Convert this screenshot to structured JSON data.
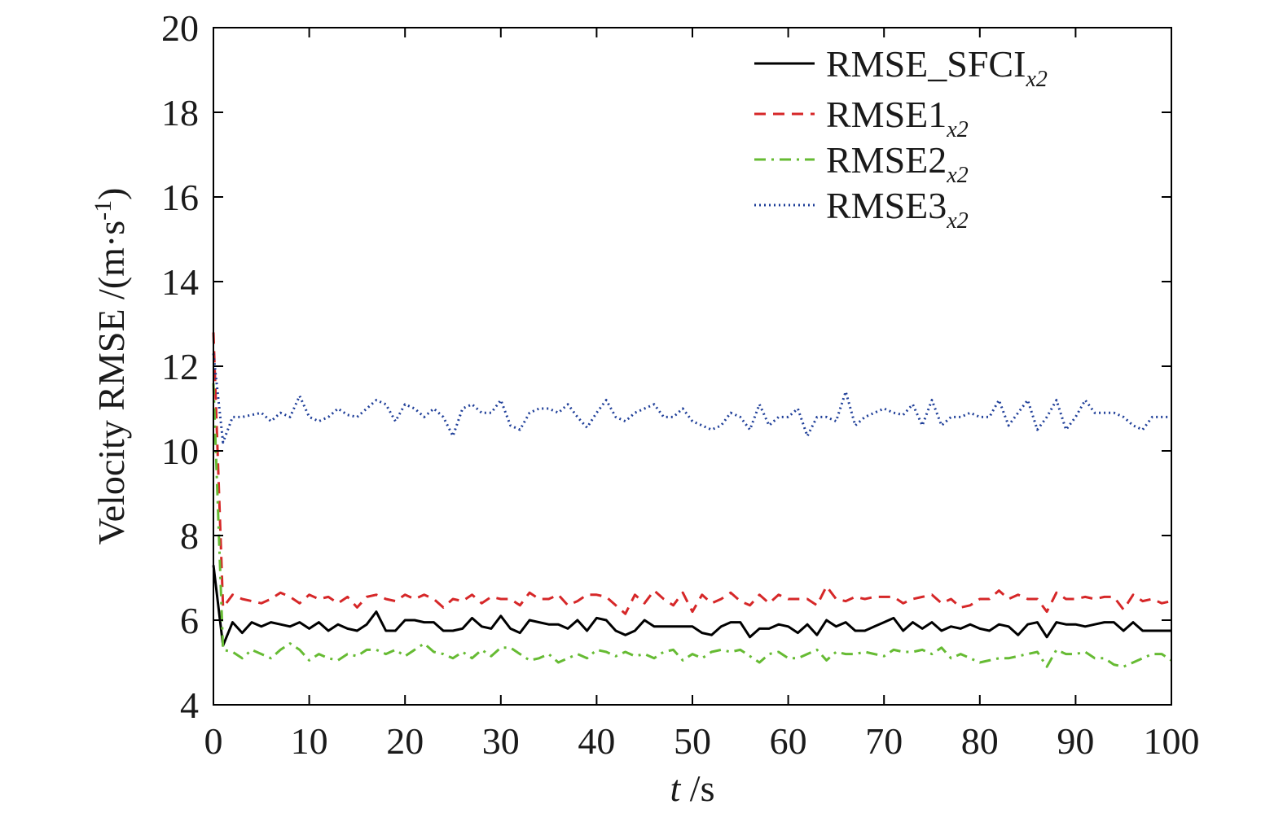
{
  "chart_data": {
    "type": "line",
    "xlabel": {
      "var": "t",
      "unit": " /s"
    },
    "ylabel": "Velocity RMSE /(m·s-1)",
    "ylabel_parts": {
      "main": "Velocity RMSE /(m·s",
      "sup": "-1",
      "close": ")"
    },
    "xlim": [
      0,
      100
    ],
    "ylim": [
      4,
      20
    ],
    "xticks": [
      0,
      10,
      20,
      30,
      40,
      50,
      60,
      70,
      80,
      90,
      100
    ],
    "yticks": [
      4,
      6,
      8,
      10,
      12,
      14,
      16,
      18,
      20
    ],
    "grid": false,
    "legend_position": "top-right",
    "series": [
      {
        "name": "RMSE_SFCI",
        "name_main": "RMSE_SFCI",
        "name_sub": "x2",
        "color": "#000000",
        "dash": "solid",
        "x": [
          0,
          1,
          2,
          3,
          4,
          5,
          6,
          7,
          8,
          9,
          10,
          11,
          12,
          13,
          14,
          15,
          16,
          17,
          18,
          19,
          20,
          21,
          22,
          23,
          24,
          25,
          26,
          27,
          28,
          29,
          30,
          31,
          32,
          33,
          34,
          35,
          36,
          37,
          38,
          39,
          40,
          41,
          42,
          43,
          44,
          45,
          46,
          47,
          48,
          49,
          50,
          51,
          52,
          53,
          54,
          55,
          56,
          57,
          58,
          59,
          60,
          61,
          62,
          63,
          64,
          65,
          66,
          67,
          68,
          69,
          70,
          71,
          72,
          73,
          74,
          75,
          76,
          77,
          78,
          79,
          80,
          81,
          82,
          83,
          84,
          85,
          86,
          87,
          88,
          89,
          90,
          91,
          92,
          93,
          94,
          95,
          96,
          97,
          98,
          99,
          100
        ],
        "values": [
          7.3,
          5.4,
          5.95,
          5.7,
          5.95,
          5.85,
          5.95,
          5.9,
          5.85,
          5.95,
          5.8,
          5.95,
          5.75,
          5.9,
          5.8,
          5.75,
          5.9,
          6.2,
          5.75,
          5.75,
          6.0,
          6.0,
          5.95,
          5.95,
          5.75,
          5.75,
          5.8,
          6.05,
          5.85,
          5.8,
          6.1,
          5.8,
          5.7,
          6.0,
          5.95,
          5.9,
          5.9,
          5.8,
          6.0,
          5.75,
          6.05,
          6.0,
          5.75,
          5.65,
          5.75,
          6.0,
          5.85,
          5.85,
          5.85,
          5.85,
          5.85,
          5.7,
          5.65,
          5.85,
          5.95,
          5.95,
          5.6,
          5.8,
          5.8,
          5.9,
          5.85,
          5.7,
          5.9,
          5.65,
          6.0,
          5.85,
          5.95,
          5.75,
          5.75,
          5.85,
          5.95,
          6.05,
          5.75,
          5.95,
          5.8,
          5.95,
          5.75,
          5.85,
          5.8,
          5.9,
          5.8,
          5.75,
          5.9,
          5.85,
          5.65,
          5.9,
          5.95,
          5.6,
          5.95,
          5.9,
          5.9,
          5.85,
          5.9,
          5.95,
          5.95,
          5.75,
          5.95,
          5.75,
          5.75,
          5.75,
          5.75
        ]
      },
      {
        "name": "RMSE1",
        "name_main": "RMSE1",
        "name_sub": "x2",
        "color": "#d62728",
        "dash": "dashed",
        "x": [
          0,
          1,
          2,
          3,
          4,
          5,
          6,
          7,
          8,
          9,
          10,
          11,
          12,
          13,
          14,
          15,
          16,
          17,
          18,
          19,
          20,
          21,
          22,
          23,
          24,
          25,
          26,
          27,
          28,
          29,
          30,
          31,
          32,
          33,
          34,
          35,
          36,
          37,
          38,
          39,
          40,
          41,
          42,
          43,
          44,
          45,
          46,
          47,
          48,
          49,
          50,
          51,
          52,
          53,
          54,
          55,
          56,
          57,
          58,
          59,
          60,
          61,
          62,
          63,
          64,
          65,
          66,
          67,
          68,
          69,
          70,
          71,
          72,
          73,
          74,
          75,
          76,
          77,
          78,
          79,
          80,
          81,
          82,
          83,
          84,
          85,
          86,
          87,
          88,
          89,
          90,
          91,
          92,
          93,
          94,
          95,
          96,
          97,
          98,
          99,
          100
        ],
        "values": [
          12.8,
          6.3,
          6.6,
          6.5,
          6.45,
          6.4,
          6.5,
          6.65,
          6.55,
          6.4,
          6.6,
          6.5,
          6.55,
          6.4,
          6.55,
          6.3,
          6.55,
          6.6,
          6.5,
          6.45,
          6.6,
          6.5,
          6.6,
          6.5,
          6.3,
          6.5,
          6.45,
          6.6,
          6.4,
          6.55,
          6.5,
          6.5,
          6.35,
          6.65,
          6.5,
          6.5,
          6.6,
          6.35,
          6.45,
          6.6,
          6.6,
          6.55,
          6.35,
          6.15,
          6.6,
          6.4,
          6.7,
          6.5,
          6.35,
          6.65,
          6.2,
          6.6,
          6.4,
          6.5,
          6.65,
          6.45,
          6.35,
          6.6,
          6.4,
          6.6,
          6.5,
          6.5,
          6.5,
          6.35,
          6.8,
          6.5,
          6.45,
          6.55,
          6.5,
          6.55,
          6.55,
          6.55,
          6.4,
          6.5,
          6.55,
          6.6,
          6.4,
          6.5,
          6.3,
          6.35,
          6.5,
          6.5,
          6.7,
          6.5,
          6.6,
          6.5,
          6.5,
          6.2,
          6.65,
          6.5,
          6.5,
          6.55,
          6.5,
          6.55,
          6.55,
          6.25,
          6.6,
          6.45,
          6.5,
          6.4,
          6.45
        ]
      },
      {
        "name": "RMSE2",
        "name_main": "RMSE2",
        "name_sub": "x2",
        "color": "#66bb33",
        "dash": "dashdot",
        "x": [
          0,
          1,
          2,
          3,
          4,
          5,
          6,
          7,
          8,
          9,
          10,
          11,
          12,
          13,
          14,
          15,
          16,
          17,
          18,
          19,
          20,
          21,
          22,
          23,
          24,
          25,
          26,
          27,
          28,
          29,
          30,
          31,
          32,
          33,
          34,
          35,
          36,
          37,
          38,
          39,
          40,
          41,
          42,
          43,
          44,
          45,
          46,
          47,
          48,
          49,
          50,
          51,
          52,
          53,
          54,
          55,
          56,
          57,
          58,
          59,
          60,
          61,
          62,
          63,
          64,
          65,
          66,
          67,
          68,
          69,
          70,
          71,
          72,
          73,
          74,
          75,
          76,
          77,
          78,
          79,
          80,
          81,
          82,
          83,
          84,
          85,
          86,
          87,
          88,
          89,
          90,
          91,
          92,
          93,
          94,
          95,
          96,
          97,
          98,
          99,
          100
        ],
        "values": [
          11.6,
          5.3,
          5.25,
          5.1,
          5.3,
          5.2,
          5.1,
          5.3,
          5.45,
          5.3,
          5.05,
          5.2,
          5.1,
          5.05,
          5.2,
          5.15,
          5.3,
          5.3,
          5.2,
          5.3,
          5.15,
          5.3,
          5.45,
          5.25,
          5.2,
          5.1,
          5.25,
          5.1,
          5.3,
          5.15,
          5.35,
          5.35,
          5.2,
          5.05,
          5.1,
          5.2,
          5.0,
          5.1,
          5.2,
          5.1,
          5.3,
          5.25,
          5.15,
          5.25,
          5.15,
          5.2,
          5.1,
          5.25,
          5.3,
          5.05,
          5.2,
          5.1,
          5.25,
          5.3,
          5.25,
          5.3,
          5.15,
          5.0,
          5.2,
          5.25,
          5.1,
          5.1,
          5.2,
          5.3,
          5.05,
          5.25,
          5.2,
          5.2,
          5.25,
          5.2,
          5.15,
          5.3,
          5.25,
          5.25,
          5.3,
          5.2,
          5.35,
          5.1,
          5.2,
          5.1,
          5.0,
          5.05,
          5.1,
          5.1,
          5.15,
          5.2,
          5.25,
          4.9,
          5.3,
          5.2,
          5.2,
          5.25,
          5.1,
          5.1,
          4.95,
          4.9,
          5.0,
          5.1,
          5.2,
          5.2,
          5.05
        ]
      },
      {
        "name": "RMSE3",
        "name_main": "RMSE3",
        "name_sub": "x2",
        "color": "#1f3f99",
        "dash": "dotted",
        "x": [
          0,
          1,
          2,
          3,
          4,
          5,
          6,
          7,
          8,
          9,
          10,
          11,
          12,
          13,
          14,
          15,
          16,
          17,
          18,
          19,
          20,
          21,
          22,
          23,
          24,
          25,
          26,
          27,
          28,
          29,
          30,
          31,
          32,
          33,
          34,
          35,
          36,
          37,
          38,
          39,
          40,
          41,
          42,
          43,
          44,
          45,
          46,
          47,
          48,
          49,
          50,
          51,
          52,
          53,
          54,
          55,
          56,
          57,
          58,
          59,
          60,
          61,
          62,
          63,
          64,
          65,
          66,
          67,
          68,
          69,
          70,
          71,
          72,
          73,
          74,
          75,
          76,
          77,
          78,
          79,
          80,
          81,
          82,
          83,
          84,
          85,
          86,
          87,
          88,
          89,
          90,
          91,
          92,
          93,
          94,
          95,
          96,
          97,
          98,
          99,
          100
        ],
        "values": [
          12.3,
          10.2,
          10.8,
          10.8,
          10.85,
          10.9,
          10.7,
          10.9,
          10.8,
          11.3,
          10.8,
          10.7,
          10.8,
          11.0,
          10.85,
          10.8,
          11.0,
          11.2,
          11.1,
          10.7,
          11.1,
          11.0,
          10.8,
          11.0,
          10.8,
          10.35,
          11.0,
          11.1,
          10.9,
          10.9,
          11.2,
          10.6,
          10.5,
          10.9,
          11.0,
          11.0,
          10.9,
          11.1,
          10.8,
          10.55,
          10.9,
          11.2,
          10.8,
          10.7,
          10.9,
          11.0,
          11.1,
          10.8,
          10.8,
          11.0,
          10.7,
          10.6,
          10.5,
          10.6,
          10.9,
          10.8,
          10.5,
          11.1,
          10.6,
          10.8,
          10.8,
          11.0,
          10.35,
          10.8,
          10.8,
          10.7,
          11.4,
          10.6,
          10.8,
          10.9,
          11.0,
          10.9,
          10.85,
          11.1,
          10.6,
          11.2,
          10.6,
          10.8,
          10.8,
          10.9,
          10.8,
          10.8,
          11.2,
          10.6,
          10.9,
          11.2,
          10.5,
          10.8,
          11.2,
          10.5,
          10.8,
          11.2,
          10.9,
          10.9,
          10.9,
          10.8,
          10.6,
          10.5,
          10.8,
          10.8,
          10.8
        ]
      }
    ]
  }
}
